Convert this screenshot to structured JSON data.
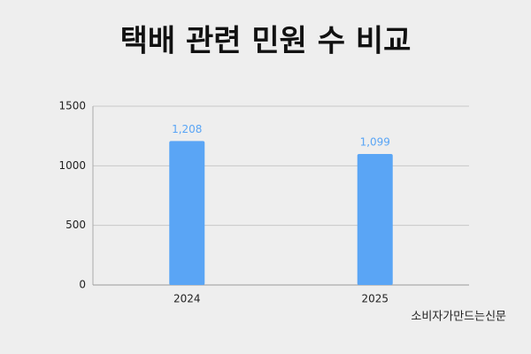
{
  "chart_data": {
    "type": "bar",
    "title": "택배 관련 민원 수 비교",
    "categories": [
      "2024",
      "2025"
    ],
    "values": [
      1208,
      1099
    ],
    "value_labels": [
      "1,208",
      "1,099"
    ],
    "color": "#5aa5f5",
    "ylim": [
      0,
      1500
    ],
    "yticks": [
      0,
      500,
      1000,
      1500
    ],
    "grid": true,
    "source": "소비자가만드는신문"
  }
}
